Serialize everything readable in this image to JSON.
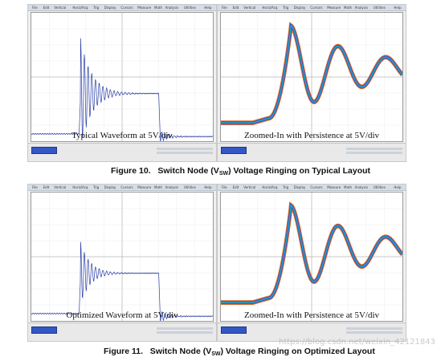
{
  "menu_items": [
    "File",
    "Edit",
    "Vertical",
    "Horiz/Acq",
    "Trig",
    "Display",
    "Cursors",
    "Measure",
    "Math",
    "Analysis",
    "Utilities",
    "Help"
  ],
  "figures": [
    {
      "left_caption": "Typical Waveform at 5V/div",
      "right_caption": "Zoomed-In with Persistence at 5V/div",
      "figure_number": "Figure 10.",
      "title_before": "Switch Node (V",
      "subscript": "SW",
      "title_after": ") Voltage Ringing on Typical Layout"
    },
    {
      "left_caption": "Optimized Waveform at 5V/div",
      "right_caption": "Zoomed-In with Persistence at 5V/div",
      "figure_number": "Figure 11.",
      "title_before": "Switch Node (V",
      "subscript": "SW",
      "title_after": ") Voltage Ringing on Optimized Layout"
    }
  ],
  "watermark": "https://blog.csdn.net/weixin_42121843",
  "colors": {
    "trace": "#2b3fa6",
    "persistence_outer": "#e0661f",
    "persistence_mid": "#2f54d8",
    "persistence_inner": "#1fb0b8",
    "grid": "#c8c8c8",
    "screen_bg": "#ffffff"
  }
}
